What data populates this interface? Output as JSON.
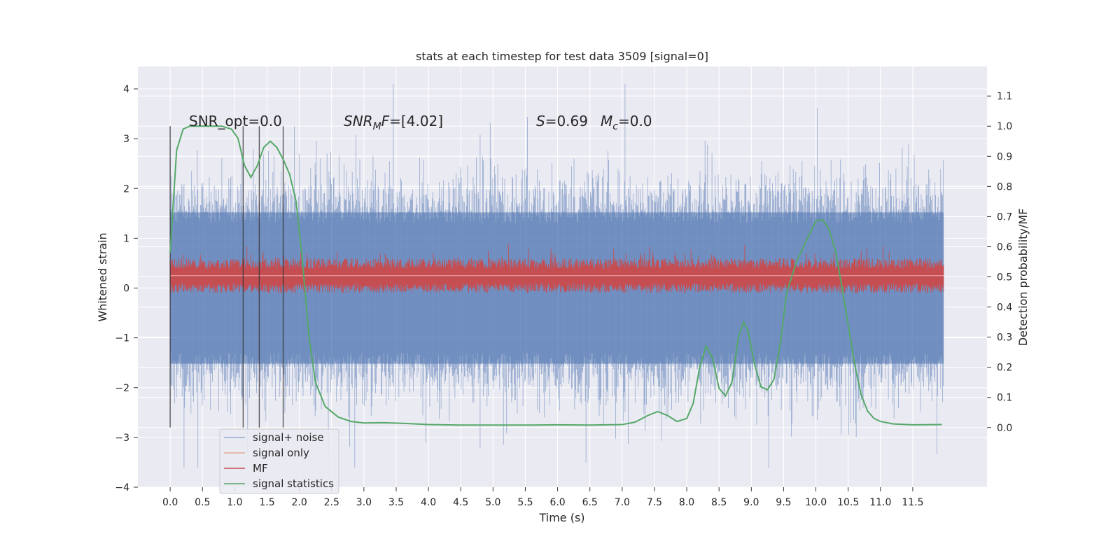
{
  "chart_data": {
    "type": "line",
    "title": "stats at each timestep for test data 3509 [signal=0]",
    "xlabel": "Time (s)",
    "ylabel": "Whitened strain",
    "y2label": "Detection probability/MF",
    "xlim": [
      -0.5,
      12.65
    ],
    "ylim": [
      -4.0,
      4.45
    ],
    "y2lim": [
      -0.198,
      1.198
    ],
    "x_ticks": [
      "0.0",
      "0.5",
      "1.0",
      "1.5",
      "2.0",
      "2.5",
      "3.0",
      "3.5",
      "4.0",
      "4.5",
      "5.0",
      "5.5",
      "6.0",
      "6.5",
      "7.0",
      "7.5",
      "8.0",
      "8.5",
      "9.0",
      "9.5",
      "10.0",
      "10.5",
      "11.0",
      "11.5"
    ],
    "y_ticks": [
      "4",
      "3",
      "2",
      "1",
      "0",
      "−1",
      "−2",
      "−3",
      "−4"
    ],
    "y2_ticks": [
      "1.1",
      "1.0",
      "0.9",
      "0.8",
      "0.7",
      "0.6",
      "0.5",
      "0.4",
      "0.3",
      "0.2",
      "0.1",
      "0.0"
    ],
    "grid": true,
    "legend_position": "lower-left",
    "annotations": {
      "snr_opt": "SNR_opt=0.0",
      "snr_mf_sym": "SNR",
      "snr_mf_sub": "M",
      "snr_mf_rest": "F=[4.02]",
      "s_sym": "S",
      "s_val": "=0.69",
      "mc_sym": "M",
      "mc_sub": "c",
      "mc_val": "=0.0"
    },
    "vertical_markers": [
      0.0,
      1.13,
      1.38,
      1.75
    ],
    "series": [
      {
        "name": "signal+ noise",
        "color": "#4c72b0",
        "kind": "noise",
        "x_range": [
          0.0,
          11.98
        ],
        "typical_abs": 1.6,
        "max_abs": 4.1
      },
      {
        "name": "signal only",
        "color": "#dd8452",
        "kind": "flat",
        "values": []
      },
      {
        "name": "MF",
        "color": "#c44e52",
        "kind": "band",
        "x_range": [
          0.0,
          11.98
        ],
        "center": 0.25,
        "half_width": 0.35,
        "peak": 1.0
      },
      {
        "name": "signal statistics",
        "color": "#55a868",
        "axis": "right",
        "x": [
          0.0,
          0.1,
          0.2,
          0.3,
          0.5,
          0.8,
          0.95,
          1.05,
          1.15,
          1.25,
          1.35,
          1.45,
          1.55,
          1.65,
          1.75,
          1.85,
          1.95,
          2.05,
          2.15,
          2.25,
          2.4,
          2.6,
          2.8,
          3.0,
          3.3,
          3.6,
          4.0,
          4.5,
          5.0,
          5.5,
          6.0,
          6.5,
          7.0,
          7.2,
          7.4,
          7.55,
          7.7,
          7.85,
          8.0,
          8.1,
          8.2,
          8.3,
          8.4,
          8.5,
          8.6,
          8.7,
          8.8,
          8.88,
          8.95,
          9.05,
          9.15,
          9.25,
          9.35,
          9.45,
          9.55,
          9.7,
          9.85,
          10.0,
          10.1,
          10.2,
          10.3,
          10.4,
          10.5,
          10.6,
          10.7,
          10.8,
          10.9,
          11.0,
          11.2,
          11.5,
          11.95
        ],
        "y": [
          0.58,
          0.92,
          0.99,
          1.0,
          1.0,
          1.0,
          0.99,
          0.96,
          0.87,
          0.83,
          0.87,
          0.93,
          0.95,
          0.93,
          0.89,
          0.84,
          0.75,
          0.55,
          0.3,
          0.15,
          0.07,
          0.035,
          0.02,
          0.015,
          0.016,
          0.014,
          0.01,
          0.008,
          0.008,
          0.008,
          0.009,
          0.008,
          0.01,
          0.018,
          0.04,
          0.053,
          0.04,
          0.02,
          0.03,
          0.08,
          0.2,
          0.27,
          0.23,
          0.13,
          0.105,
          0.15,
          0.3,
          0.35,
          0.32,
          0.21,
          0.135,
          0.125,
          0.16,
          0.28,
          0.45,
          0.55,
          0.62,
          0.685,
          0.69,
          0.66,
          0.59,
          0.47,
          0.34,
          0.21,
          0.11,
          0.055,
          0.03,
          0.02,
          0.012,
          0.009,
          0.01
        ]
      }
    ]
  }
}
